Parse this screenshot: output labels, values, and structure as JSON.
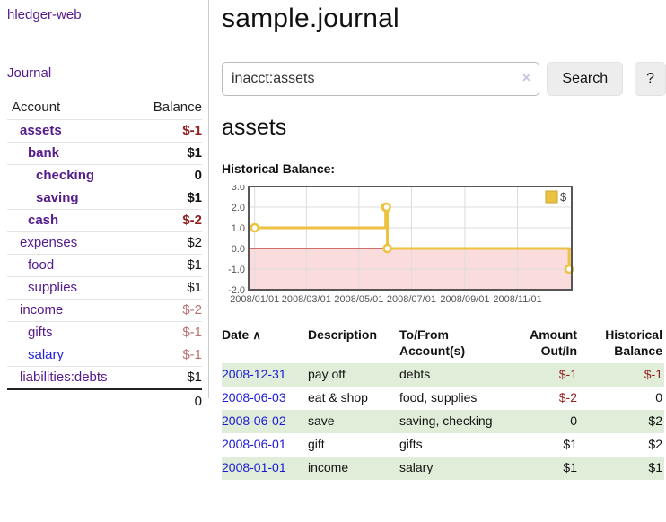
{
  "sidebar": {
    "brand": "hledger-web",
    "nav": {
      "journal": "Journal"
    },
    "table_header": {
      "account": "Account",
      "balance": "Balance"
    },
    "accounts": [
      {
        "name": "assets",
        "balance": "$-1",
        "level": 1,
        "bold": true,
        "balance_style": "neg-strong"
      },
      {
        "name": "bank",
        "balance": "$1",
        "level": 2,
        "bold": true,
        "balance_style": "pos"
      },
      {
        "name": "checking",
        "balance": "0",
        "level": 3,
        "bold": true,
        "balance_style": "pos"
      },
      {
        "name": "saving",
        "balance": "$1",
        "level": 3,
        "bold": true,
        "balance_style": "pos"
      },
      {
        "name": "cash",
        "balance": "$-2",
        "level": 2,
        "bold": true,
        "balance_style": "neg-strong"
      },
      {
        "name": "expenses",
        "balance": "$2",
        "level": 1,
        "bold": false,
        "balance_style": "pos"
      },
      {
        "name": "food",
        "balance": "$1",
        "level": 2,
        "bold": false,
        "balance_style": "pos"
      },
      {
        "name": "supplies",
        "balance": "$1",
        "level": 2,
        "bold": false,
        "balance_style": "pos"
      },
      {
        "name": "income",
        "balance": "$-2",
        "level": 1,
        "bold": false,
        "balance_style": "neg-soft"
      },
      {
        "name": "gifts",
        "balance": "$-1",
        "level": 2,
        "bold": false,
        "balance_style": "neg-soft"
      },
      {
        "name": "salary",
        "balance": "$-1",
        "level": 2,
        "bold": false,
        "balance_style": "neg-soft",
        "link_color": "blue"
      },
      {
        "name": "liabilities:debts",
        "balance": "$1",
        "level": 1,
        "bold": false,
        "balance_style": "pos"
      }
    ],
    "total": "0"
  },
  "main": {
    "title": "sample.journal",
    "search": {
      "value": "inacct:assets",
      "clear_glyph": "×",
      "search_label": "Search",
      "help_label": "?"
    },
    "account_heading": "assets",
    "chart_heading": "Historical Balance:"
  },
  "chart_data": {
    "type": "line",
    "title": "Historical Balance",
    "style": "step",
    "legend": [
      {
        "label": "$",
        "color": "#edc240"
      }
    ],
    "legend_position": "top-right",
    "x_ticks": [
      "2008/01/01",
      "2008/03/01",
      "2008/05/01",
      "2008/07/01",
      "2008/09/01",
      "2008/11/01"
    ],
    "y_ticks": [
      3.0,
      2.0,
      1.0,
      0.0,
      -1.0,
      -2.0
    ],
    "ylim": [
      -2,
      3
    ],
    "grid": true,
    "series": [
      {
        "name": "$",
        "color": "#edc240",
        "points": [
          {
            "date": "2008-01-01",
            "value": 1
          },
          {
            "date": "2008-06-01",
            "value": 2
          },
          {
            "date": "2008-06-02",
            "value": 2
          },
          {
            "date": "2008-06-03",
            "value": 0
          },
          {
            "date": "2008-12-31",
            "value": -1
          }
        ]
      }
    ],
    "negative_fill": "#fbdcdc",
    "zero_line_color": "#a40000"
  },
  "register": {
    "columns": [
      {
        "line1": "Date",
        "line2": "",
        "align": "left",
        "sortable": true
      },
      {
        "line1": "Description",
        "line2": "",
        "align": "left",
        "sortable": false
      },
      {
        "line1": "To/From",
        "line2": "Account(s)",
        "align": "left",
        "sortable": false
      },
      {
        "line1": "Amount",
        "line2": "Out/In",
        "align": "right",
        "sortable": false
      },
      {
        "line1": "Historical",
        "line2": "Balance",
        "align": "right",
        "sortable": false
      }
    ],
    "sort_icon_glyph": "∧",
    "rows": [
      {
        "date": "2008-12-31",
        "description": "pay off",
        "accounts": "debts",
        "amount": "$-1",
        "amount_neg": true,
        "balance": "$-1",
        "balance_neg": true,
        "shaded": true
      },
      {
        "date": "2008-06-03",
        "description": "eat & shop",
        "accounts": "food, supplies",
        "amount": "$-2",
        "amount_neg": true,
        "balance": "0",
        "balance_neg": false,
        "shaded": false
      },
      {
        "date": "2008-06-02",
        "description": "save",
        "accounts": "saving, checking",
        "amount": "0",
        "amount_neg": false,
        "balance": "$2",
        "balance_neg": false,
        "shaded": true
      },
      {
        "date": "2008-06-01",
        "description": "gift",
        "accounts": "gifts",
        "amount": "$1",
        "amount_neg": false,
        "balance": "$2",
        "balance_neg": false,
        "shaded": false
      },
      {
        "date": "2008-01-01",
        "description": "income",
        "accounts": "salary",
        "amount": "$1",
        "amount_neg": false,
        "balance": "$1",
        "balance_neg": false,
        "shaded": true
      }
    ]
  },
  "colors": {
    "link_purple": "#551a8b",
    "link_blue": "#2222dd",
    "date_blue": "#1a1ad6",
    "negative_strong": "#8f1f1f",
    "negative_soft": "#bb6f6f",
    "row_green": "#e0eed9",
    "accent_gold": "#edc240",
    "chart_negative_fill": "#fbdcdc",
    "chart_zero_line": "#a40000"
  }
}
